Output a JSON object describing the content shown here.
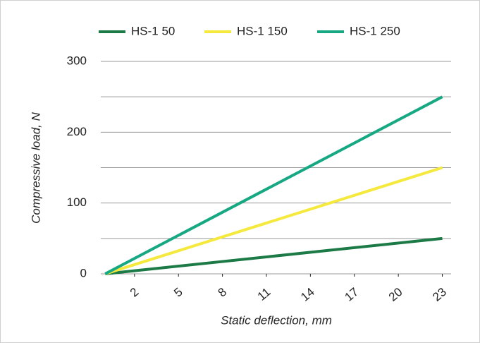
{
  "chart_data": {
    "type": "line",
    "xlabel": "Static deflection, mm",
    "ylabel": "Compressive load, N",
    "x": [
      0,
      23
    ],
    "series": [
      {
        "name": "HS-1 50",
        "color": "#1b7a45",
        "values": [
          0,
          50
        ]
      },
      {
        "name": "HS-1 150",
        "color": "#f4e93c",
        "values": [
          0,
          150
        ]
      },
      {
        "name": "HS-1 250",
        "color": "#16a882",
        "values": [
          0,
          250
        ]
      }
    ],
    "xlim": [
      -0.3,
      23.6
    ],
    "xticks": [
      2,
      5,
      8,
      11,
      14,
      17,
      20,
      23
    ],
    "ylim": [
      0,
      300
    ],
    "yticks": [
      0,
      100,
      200,
      300
    ],
    "yminorticks": [
      50,
      150,
      250
    ],
    "grid": true,
    "legend": "top"
  }
}
